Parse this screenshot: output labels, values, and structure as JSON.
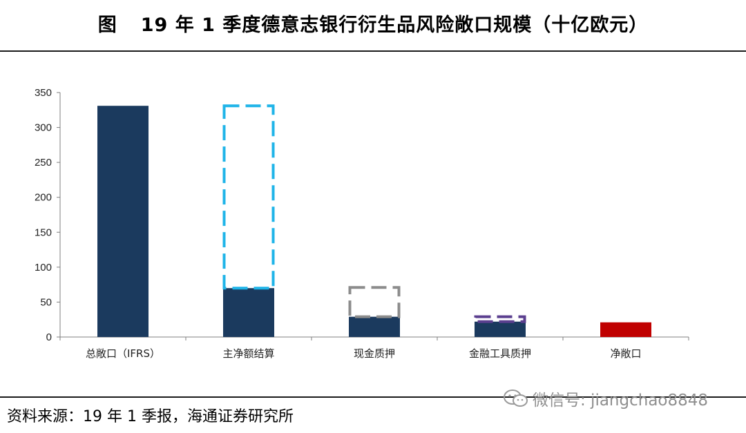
{
  "header": {
    "label": "图",
    "title": "19 年 1 季度德意志银行衍生品风险敞口规模（十亿欧元）"
  },
  "footer": {
    "source": "资料来源：19 年 1 季报，海通证券研究所"
  },
  "watermark": {
    "text": "微信号: jiangchao8848",
    "icon": "wechat-icon"
  },
  "chart_data": {
    "type": "bar",
    "categories": [
      "总敞口（IFRS）",
      "主净额结算",
      "现金质押",
      "金融工具质押",
      "净敞口"
    ],
    "bars": [
      {
        "category": "总敞口（IFRS）",
        "base": 0,
        "value": 331,
        "ghost_top": null,
        "fill": "#1b3a5e",
        "ghost_color": null
      },
      {
        "category": "主净额结算",
        "base": 0,
        "value": 70,
        "ghost_top": 331,
        "fill": "#1b3a5e",
        "ghost_color": "#1fb4e8"
      },
      {
        "category": "现金质押",
        "base": 0,
        "value": 29,
        "ghost_top": 71,
        "fill": "#1b3a5e",
        "ghost_color": "#8c8c8c"
      },
      {
        "category": "金融工具质押",
        "base": 0,
        "value": 22,
        "ghost_top": 29,
        "fill": "#1b3a5e",
        "ghost_color": "#5b3f8f"
      },
      {
        "category": "净敞口",
        "base": 0,
        "value": 21,
        "ghost_top": null,
        "fill": "#c00000",
        "ghost_color": null
      }
    ],
    "ylim": [
      0,
      350
    ],
    "yticks": [
      0,
      50,
      100,
      150,
      200,
      250,
      300,
      350
    ],
    "grid": false,
    "legend": "none"
  }
}
